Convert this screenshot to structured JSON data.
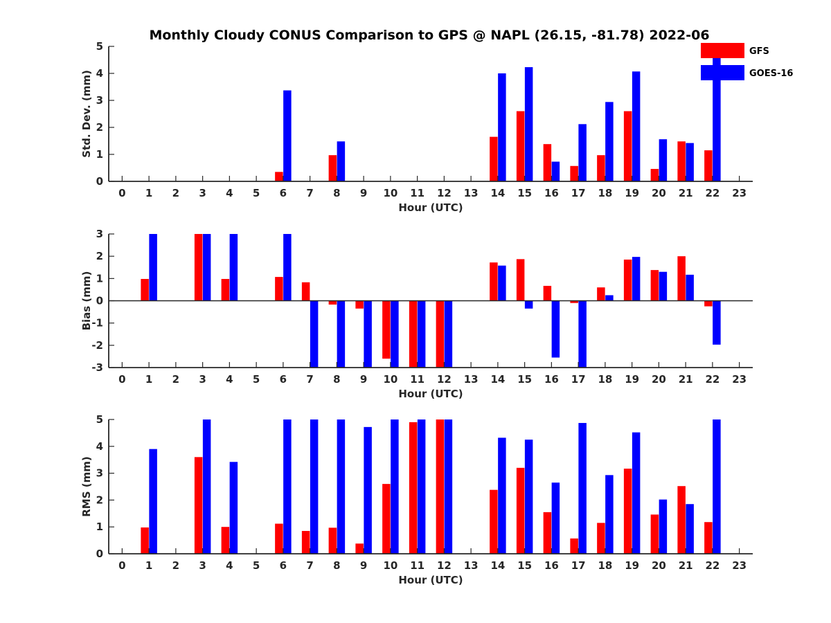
{
  "chart_data": {
    "title": "Monthly Cloudy CONUS Comparison to GPS @ NAPL (26.15, -81.78) 2022-06",
    "type": "bar",
    "categories": [
      "0",
      "1",
      "2",
      "3",
      "4",
      "5",
      "6",
      "7",
      "8",
      "9",
      "10",
      "11",
      "12",
      "13",
      "14",
      "15",
      "16",
      "17",
      "18",
      "19",
      "20",
      "21",
      "22",
      "23"
    ],
    "colors": {
      "GFS": "#ff0000",
      "GOES-16": "#0000ff"
    },
    "legend": {
      "placement": "top-right",
      "entries": [
        "GFS",
        "GOES-16"
      ]
    },
    "panels": [
      {
        "id": "std",
        "ylabel": "Std. Dev. (mm)",
        "xlabel": "Hour (UTC)",
        "ylim": [
          0,
          5
        ],
        "yticks": [
          "0",
          "1",
          "2",
          "3",
          "4",
          "5"
        ],
        "series": [
          {
            "name": "GFS",
            "values": [
              null,
              null,
              null,
              null,
              null,
              null,
              0.35,
              null,
              0.97,
              null,
              null,
              null,
              null,
              null,
              1.65,
              2.6,
              1.38,
              0.57,
              0.97,
              2.6,
              0.46,
              1.48,
              1.15,
              null
            ]
          },
          {
            "name": "GOES-16",
            "values": [
              null,
              null,
              null,
              null,
              null,
              null,
              3.37,
              null,
              1.48,
              null,
              null,
              null,
              null,
              null,
              4.0,
              4.23,
              0.73,
              2.12,
              2.94,
              4.07,
              1.56,
              1.42,
              4.85,
              null
            ]
          }
        ]
      },
      {
        "id": "bias",
        "ylabel": "Bias (mm)",
        "xlabel": "Hour (UTC)",
        "ylim": [
          -3,
          3
        ],
        "yticks": [
          "-3",
          "-2",
          "-1",
          "0",
          "1",
          "2",
          "3"
        ],
        "series": [
          {
            "name": "GFS",
            "values": [
              null,
              0.98,
              null,
              3.0,
              0.98,
              null,
              1.07,
              0.83,
              -0.17,
              -0.35,
              -2.6,
              -3.0,
              -3.0,
              null,
              1.72,
              1.87,
              0.67,
              -0.1,
              0.6,
              1.85,
              1.38,
              2.0,
              -0.25,
              null
            ]
          },
          {
            "name": "GOES-16",
            "values": [
              null,
              3.0,
              null,
              3.0,
              3.0,
              null,
              3.0,
              -3.0,
              -3.0,
              -3.0,
              -3.0,
              -3.0,
              -3.0,
              null,
              1.58,
              -0.35,
              -2.55,
              -3.0,
              0.25,
              1.97,
              1.3,
              1.17,
              -1.97,
              null
            ]
          }
        ]
      },
      {
        "id": "rms",
        "ylabel": "RMS (mm)",
        "xlabel": "Hour (UTC)",
        "ylim": [
          0,
          5
        ],
        "yticks": [
          "0",
          "1",
          "2",
          "3",
          "4",
          "5"
        ],
        "series": [
          {
            "name": "GFS",
            "values": [
              null,
              0.98,
              null,
              3.6,
              1.0,
              null,
              1.12,
              0.85,
              0.97,
              0.38,
              2.6,
              4.9,
              5.0,
              null,
              2.38,
              3.2,
              1.55,
              0.57,
              1.15,
              3.17,
              1.46,
              2.52,
              1.18,
              null
            ]
          },
          {
            "name": "GOES-16",
            "values": [
              null,
              3.9,
              null,
              5.0,
              3.42,
              null,
              5.0,
              5.0,
              5.0,
              4.72,
              5.0,
              5.0,
              5.0,
              null,
              4.32,
              4.25,
              2.65,
              4.87,
              2.93,
              4.52,
              2.02,
              1.85,
              5.0,
              null
            ]
          }
        ]
      }
    ]
  }
}
